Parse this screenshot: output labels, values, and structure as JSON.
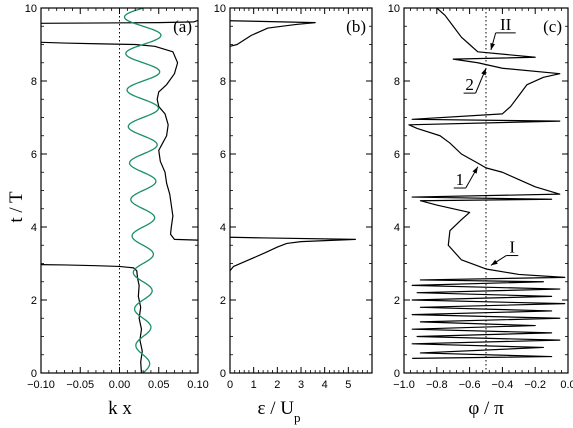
{
  "chart_data": [
    {
      "type": "line",
      "panel_label": "(a)",
      "xlabel": "k x",
      "ylabel": "t / T",
      "xlim": [
        -0.1,
        0.1
      ],
      "ylim": [
        0,
        10
      ],
      "xticks": [
        "−0.10",
        "−0.05",
        "0.00",
        "0.05",
        "0.10"
      ],
      "xtick_values": [
        -0.1,
        -0.05,
        0,
        0.05,
        0.1
      ],
      "yticks": [
        "0",
        "2",
        "4",
        "6",
        "8",
        "10"
      ],
      "ytick_values": [
        0,
        2,
        4,
        6,
        8,
        10
      ],
      "reference_line": {
        "x": 0,
        "style": "dotted"
      },
      "series": [
        {
          "color": "#000000",
          "points": [
            [
              0.028,
              0
            ],
            [
              0.027,
              0.3
            ],
            [
              0.029,
              0.6
            ],
            [
              0.026,
              0.9
            ],
            [
              0.028,
              1.2
            ],
            [
              0.025,
              1.5
            ],
            [
              0.027,
              1.8
            ],
            [
              0.024,
              2.1
            ],
            [
              0.025,
              2.4
            ],
            [
              0.023,
              2.6
            ],
            [
              0.022,
              2.8
            ],
            [
              0.018,
              2.88
            ],
            [
              0.0,
              2.92
            ],
            [
              -0.03,
              2.94
            ],
            [
              -0.07,
              2.96
            ],
            [
              -0.1,
              2.97
            ]
          ]
        },
        {
          "color": "#000000",
          "points": [
            [
              0.1,
              3.64
            ],
            [
              0.07,
              3.66
            ],
            [
              0.065,
              3.8
            ],
            [
              0.066,
              4.0
            ],
            [
              0.068,
              4.3
            ],
            [
              0.066,
              4.6
            ],
            [
              0.064,
              4.9
            ],
            [
              0.06,
              5.2
            ],
            [
              0.058,
              5.5
            ],
            [
              0.052,
              5.8
            ],
            [
              0.05,
              6.1
            ],
            [
              0.055,
              6.3
            ],
            [
              0.06,
              6.5
            ],
            [
              0.062,
              6.8
            ],
            [
              0.058,
              7.1
            ],
            [
              0.05,
              7.3
            ],
            [
              0.048,
              7.5
            ],
            [
              0.05,
              7.7
            ],
            [
              0.06,
              7.9
            ],
            [
              0.07,
              8.2
            ],
            [
              0.074,
              8.5
            ],
            [
              0.068,
              8.8
            ],
            [
              0.045,
              8.95
            ],
            [
              0.02,
              9.0
            ],
            [
              -0.03,
              9.02
            ],
            [
              -0.07,
              9.04
            ],
            [
              -0.1,
              9.06
            ]
          ]
        },
        {
          "color": "#000000",
          "points": [
            [
              -0.1,
              9.58
            ],
            [
              0.05,
              9.6
            ],
            [
              0.095,
              9.62
            ],
            [
              0.1,
              9.66
            ]
          ]
        },
        {
          "color": "#1a8f6a",
          "function": "sine",
          "center_x": 0.03,
          "period_t": 1.0,
          "amplitude_start": 0.008,
          "amplitude_end": 0.024
        }
      ]
    },
    {
      "type": "line",
      "panel_label": "(b)",
      "xlabel": "ε / U",
      "xlabel_sub": "p",
      "xlim": [
        0,
        6
      ],
      "ylim": [
        0,
        10
      ],
      "xticks": [
        "0",
        "1",
        "2",
        "3",
        "4",
        "5"
      ],
      "xtick_values": [
        0,
        1,
        2,
        3,
        4,
        5
      ],
      "series": [
        {
          "color": "#000000",
          "points": [
            [
              0,
              2.8
            ],
            [
              0.15,
              2.92
            ],
            [
              0.8,
              3.1
            ],
            [
              1.5,
              3.3
            ],
            [
              2.0,
              3.45
            ],
            [
              2.4,
              3.55
            ],
            [
              3.0,
              3.6
            ],
            [
              5.3,
              3.66
            ],
            [
              1.5,
              3.7
            ],
            [
              0,
              3.72
            ]
          ]
        },
        {
          "color": "#000000",
          "points": [
            [
              0,
              8.95
            ],
            [
              0.3,
              9.0
            ],
            [
              0.9,
              9.25
            ],
            [
              1.6,
              9.45
            ],
            [
              2.8,
              9.55
            ],
            [
              3.6,
              9.6
            ],
            [
              1.5,
              9.63
            ],
            [
              0,
              9.65
            ]
          ]
        }
      ]
    },
    {
      "type": "line",
      "panel_label": "(c)",
      "xlabel": "φ / π",
      "xlim": [
        -1.0,
        0.0
      ],
      "ylim": [
        0,
        10
      ],
      "xticks": [
        "−1.0",
        "−0.8",
        "−0.6",
        "−0.4",
        "−0.2",
        "0.0"
      ],
      "xtick_values": [
        -1.0,
        -0.8,
        -0.6,
        -0.4,
        -0.2,
        0.0
      ],
      "reference_line": {
        "x": -0.5,
        "style": "dotted"
      },
      "series": [
        {
          "color": "#000000",
          "points": [
            [
              -0.95,
              0.4
            ],
            [
              -0.1,
              0.45
            ],
            [
              -0.9,
              0.55
            ],
            [
              -0.15,
              0.7
            ],
            [
              -0.95,
              0.8
            ],
            [
              -0.05,
              0.9
            ],
            [
              -0.92,
              1.0
            ],
            [
              -0.1,
              1.1
            ],
            [
              -0.95,
              1.2
            ],
            [
              -0.2,
              1.3
            ],
            [
              -0.9,
              1.4
            ],
            [
              -0.05,
              1.5
            ],
            [
              -0.95,
              1.6
            ],
            [
              -0.1,
              1.7
            ],
            [
              -0.9,
              1.8
            ],
            [
              -0.02,
              1.9
            ],
            [
              -0.95,
              2.0
            ],
            [
              -0.1,
              2.1
            ],
            [
              -0.92,
              2.2
            ],
            [
              -0.05,
              2.3
            ],
            [
              -0.95,
              2.4
            ],
            [
              -0.15,
              2.5
            ],
            [
              -0.9,
              2.55
            ],
            [
              -0.02,
              2.62
            ],
            [
              -0.3,
              2.7
            ],
            [
              -0.5,
              2.85
            ],
            [
              -0.65,
              3.1
            ],
            [
              -0.73,
              3.5
            ],
            [
              -0.72,
              3.9
            ],
            [
              -0.65,
              4.2
            ],
            [
              -0.6,
              4.4
            ],
            [
              -0.8,
              4.6
            ],
            [
              -0.9,
              4.72
            ],
            [
              -0.1,
              4.76
            ],
            [
              -0.95,
              4.82
            ],
            [
              -0.05,
              4.9
            ],
            [
              -0.2,
              5.1
            ],
            [
              -0.3,
              5.3
            ],
            [
              -0.4,
              5.5
            ],
            [
              -0.5,
              5.62
            ],
            [
              -0.55,
              5.75
            ],
            [
              -0.65,
              6.0
            ],
            [
              -0.72,
              6.3
            ],
            [
              -0.78,
              6.5
            ],
            [
              -0.92,
              6.7
            ],
            [
              -0.97,
              6.8
            ],
            [
              -0.05,
              6.9
            ],
            [
              -0.95,
              6.95
            ],
            [
              -0.4,
              7.1
            ],
            [
              -0.35,
              7.3
            ],
            [
              -0.3,
              7.6
            ],
            [
              -0.25,
              7.9
            ],
            [
              -0.15,
              8.1
            ],
            [
              -0.05,
              8.2
            ],
            [
              -0.4,
              8.35
            ],
            [
              -0.55,
              8.5
            ],
            [
              -0.7,
              8.6
            ],
            [
              -0.2,
              8.65
            ],
            [
              -0.55,
              8.8
            ],
            [
              -0.6,
              9.0
            ],
            [
              -0.65,
              9.2
            ],
            [
              -0.7,
              9.5
            ],
            [
              -0.75,
              9.8
            ],
            [
              -0.8,
              10.0
            ]
          ]
        }
      ],
      "annotations": [
        {
          "text": "I",
          "x": -0.34,
          "y": 3.3,
          "arrow_to": [
            -0.47,
            2.95
          ]
        },
        {
          "text": "1",
          "x": -0.66,
          "y": 5.15,
          "arrow_to": [
            -0.55,
            5.65
          ]
        },
        {
          "text": "2",
          "x": -0.6,
          "y": 7.75,
          "arrow_to": [
            -0.5,
            8.35
          ]
        },
        {
          "text": "II",
          "x": -0.38,
          "y": 9.4,
          "arrow_to": [
            -0.47,
            8.85
          ]
        }
      ]
    }
  ]
}
